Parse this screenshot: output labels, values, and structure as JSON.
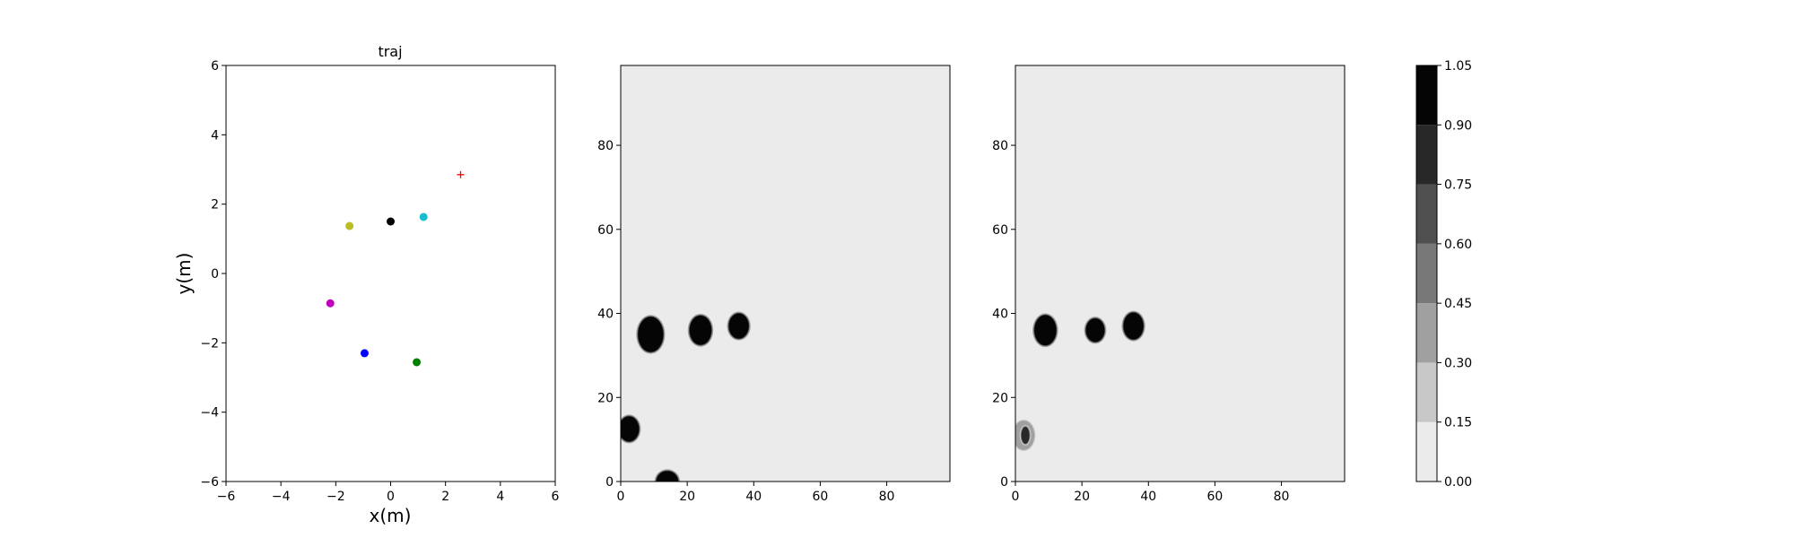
{
  "chart_data": [
    {
      "type": "scatter",
      "title": "traj",
      "xlabel": "x(m)",
      "ylabel": "y(m)",
      "xlim": [
        -6,
        6
      ],
      "ylim": [
        -6,
        6
      ],
      "xticks": [
        -6,
        -4,
        -2,
        0,
        2,
        4,
        6
      ],
      "yticks": [
        -6,
        -4,
        -2,
        0,
        2,
        4,
        6
      ],
      "xtick_labels": [
        "−6",
        "−4",
        "−2",
        "0",
        "2",
        "4",
        "6"
      ],
      "ytick_labels": [
        "−6",
        "−4",
        "−2",
        "0",
        "2",
        "4",
        "6"
      ],
      "grid": false,
      "points": [
        {
          "x": 0.0,
          "y": 1.5,
          "color": "#000000",
          "marker": "circle"
        },
        {
          "x": 1.2,
          "y": 1.63,
          "color": "#17becf",
          "marker": "circle"
        },
        {
          "x": -1.5,
          "y": 1.37,
          "color": "#bcbd22",
          "marker": "circle"
        },
        {
          "x": -2.2,
          "y": -0.86,
          "color": "#bf00bf",
          "marker": "circle"
        },
        {
          "x": -0.95,
          "y": -2.3,
          "color": "#0000ff",
          "marker": "circle"
        },
        {
          "x": 0.95,
          "y": -2.56,
          "color": "#008000",
          "marker": "circle"
        },
        {
          "x": 2.55,
          "y": 2.85,
          "color": "#ff0000",
          "marker": "plus"
        }
      ]
    },
    {
      "type": "heatmap",
      "title": "",
      "xlabel": "",
      "ylabel": "",
      "xlim": [
        0,
        99
      ],
      "ylim": [
        0,
        99
      ],
      "xticks": [
        0,
        20,
        40,
        60,
        80
      ],
      "yticks": [
        0,
        20,
        40,
        60,
        80
      ],
      "background_value": 0.05,
      "blobs": [
        {
          "x": 9,
          "y": 35,
          "rx": 3.8,
          "ry": 4.2,
          "value": 1.0
        },
        {
          "x": 24,
          "y": 36,
          "rx": 3.3,
          "ry": 3.5,
          "value": 1.0
        },
        {
          "x": 35.5,
          "y": 37,
          "rx": 3.0,
          "ry": 3.0,
          "value": 1.0
        },
        {
          "x": 2.5,
          "y": 12.5,
          "rx": 3.0,
          "ry": 3.0,
          "value": 1.0
        },
        {
          "x": 14,
          "y": 0,
          "rx": 3.3,
          "ry": 2.5,
          "value": 1.0
        }
      ]
    },
    {
      "type": "heatmap",
      "title": "",
      "xlabel": "",
      "ylabel": "",
      "xlim": [
        0,
        99
      ],
      "ylim": [
        0,
        99
      ],
      "xticks": [
        0,
        20,
        40,
        60,
        80
      ],
      "yticks": [
        0,
        20,
        40,
        60,
        80
      ],
      "background_value": 0.05,
      "blobs": [
        {
          "x": 9,
          "y": 36,
          "rx": 3.3,
          "ry": 3.6,
          "value": 1.0
        },
        {
          "x": 24,
          "y": 36,
          "rx": 2.8,
          "ry": 2.8,
          "value": 1.0
        },
        {
          "x": 35.5,
          "y": 37,
          "rx": 3.0,
          "ry": 3.2,
          "value": 1.0
        },
        {
          "x": 2.5,
          "y": 11,
          "rx": 3.0,
          "ry": 3.3,
          "value": 0.4
        },
        {
          "x": 3,
          "y": 11,
          "rx": 1.2,
          "ry": 2.0,
          "value": 0.8
        }
      ]
    }
  ],
  "colorbar": {
    "levels": [
      0.0,
      0.15,
      0.3,
      0.45,
      0.6,
      0.75,
      0.9,
      1.05
    ],
    "labels": [
      "0.00",
      "0.15",
      "0.30",
      "0.45",
      "0.60",
      "0.75",
      "0.90",
      "1.05"
    ],
    "colors": [
      "#ebebeb",
      "#c8c8c8",
      "#a0a0a0",
      "#787878",
      "#505050",
      "#282828",
      "#050505"
    ]
  }
}
